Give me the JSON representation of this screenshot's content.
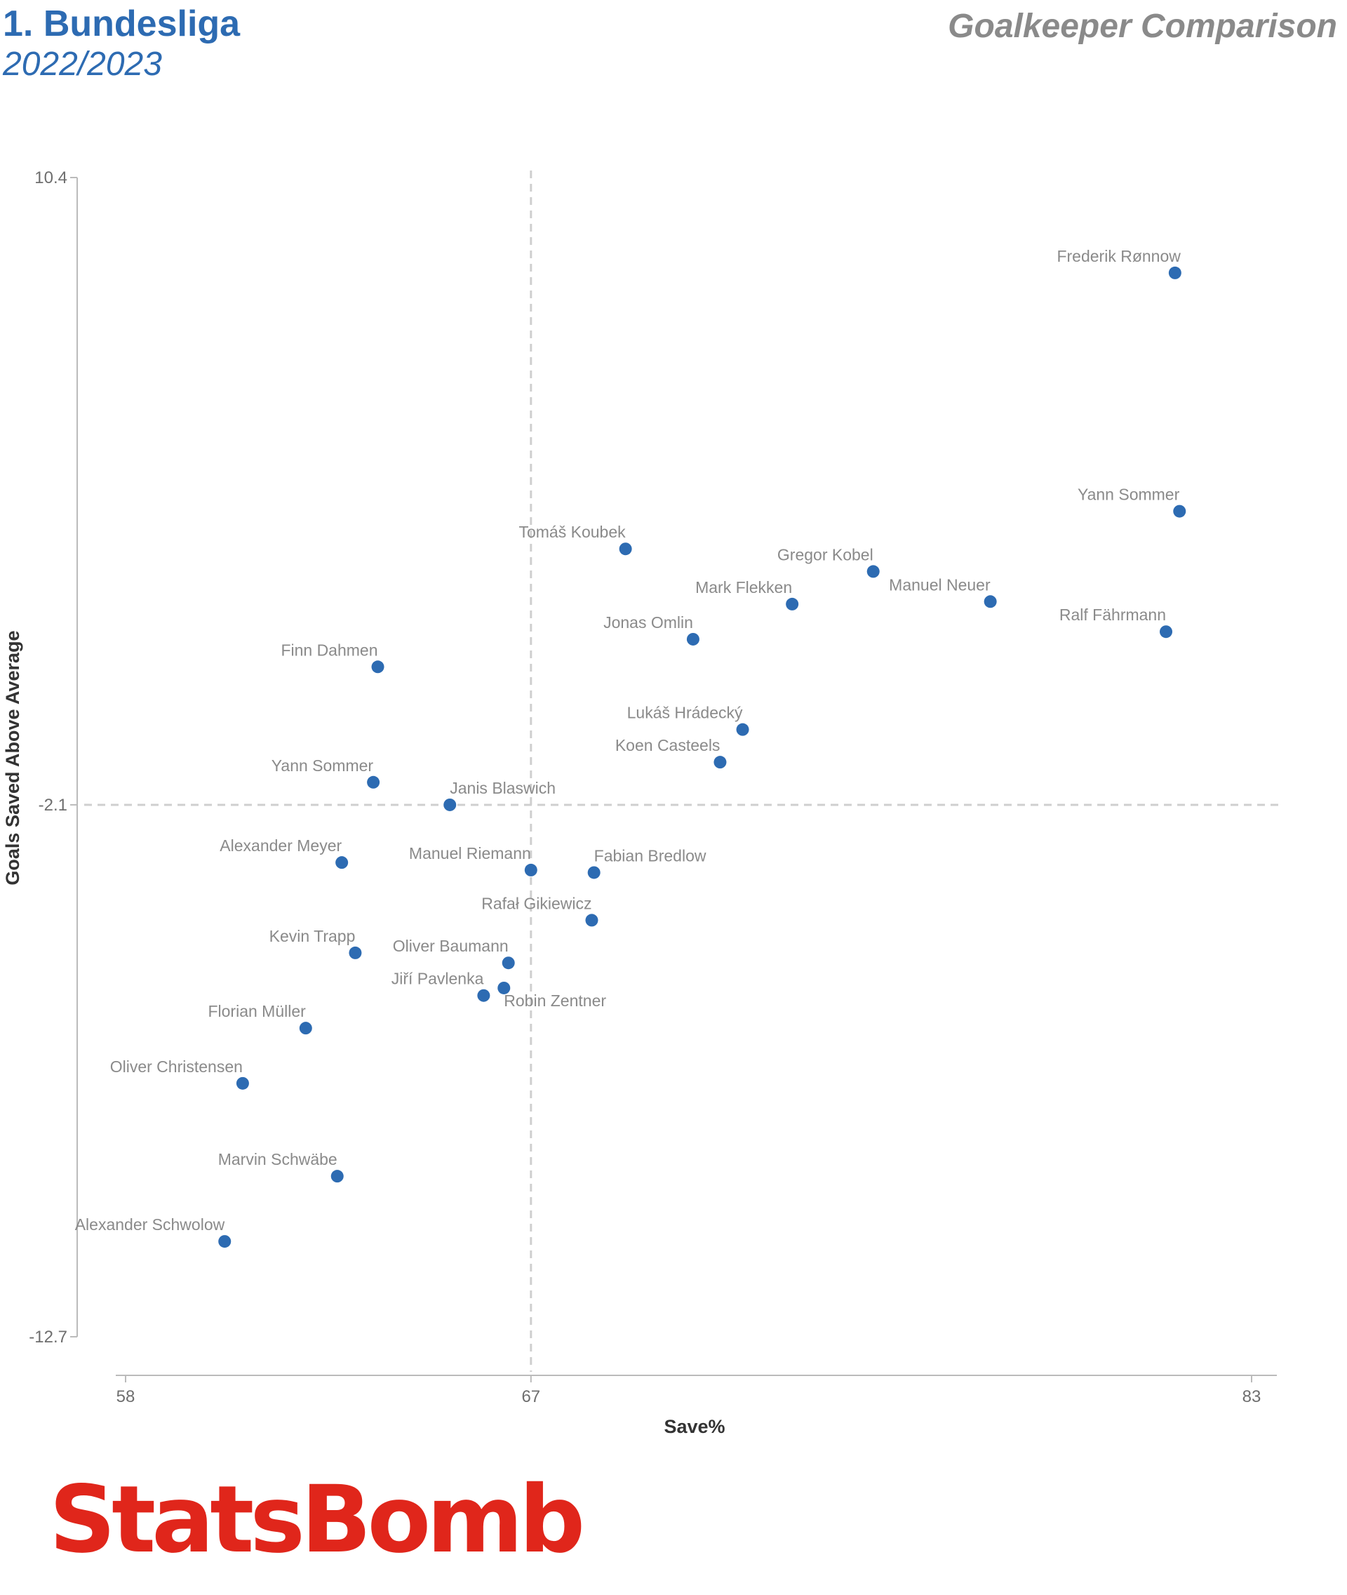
{
  "header": {
    "league": "1. Bundesliga",
    "season": "2022/2023",
    "comparison": "Goalkeeper Comparison"
  },
  "brand": {
    "logo_text": "StatsBomb",
    "logo_color": "#e0261b"
  },
  "chart_data": {
    "type": "scatter",
    "title": "Goalkeeper Comparison",
    "xlabel": "Save%",
    "ylabel": "Goals Saved Above Average",
    "xlim": [
      57.5,
      83.2
    ],
    "ylim": [
      -12.7,
      10.4
    ],
    "x_ticks": [
      {
        "value": 58,
        "label": "58"
      },
      {
        "value": 67,
        "label": "67"
      },
      {
        "value": 83,
        "label": "83"
      }
    ],
    "y_ticks": [
      {
        "value": 10.4,
        "label": "10.4"
      },
      {
        "value": -2.1,
        "label": "-2.1"
      },
      {
        "value": -12.7,
        "label": "-12.7"
      }
    ],
    "reference_lines": {
      "x": 67,
      "y": -2.1
    },
    "grid": false,
    "legend": "none",
    "point_color": "#2d6bb2",
    "label_color": "#8a8a8a",
    "points": [
      {
        "label": "Frederik Rønnow",
        "x": 81.3,
        "y": 8.5,
        "anchor": "end",
        "dx": 8,
        "dy": -16
      },
      {
        "label": "Yann Sommer",
        "x": 81.4,
        "y": 3.75,
        "anchor": "end",
        "dx": 0,
        "dy": -16
      },
      {
        "label": "Tomáš Koubek",
        "x": 69.1,
        "y": 3.0,
        "anchor": "end",
        "dx": 0,
        "dy": -16
      },
      {
        "label": "Gregor Kobel",
        "x": 74.6,
        "y": 2.55,
        "anchor": "end",
        "dx": 0,
        "dy": -16
      },
      {
        "label": "Mark Flekken",
        "x": 72.8,
        "y": 1.9,
        "anchor": "end",
        "dx": 0,
        "dy": -16
      },
      {
        "label": "Manuel Neuer",
        "x": 77.2,
        "y": 1.95,
        "anchor": "end",
        "dx": 0,
        "dy": -16
      },
      {
        "label": "Ralf Fährmann",
        "x": 81.1,
        "y": 1.35,
        "anchor": "end",
        "dx": 0,
        "dy": -16
      },
      {
        "label": "Jonas Omlin",
        "x": 70.6,
        "y": 1.2,
        "anchor": "end",
        "dx": 0,
        "dy": -16
      },
      {
        "label": "Finn Dahmen",
        "x": 63.6,
        "y": 0.65,
        "anchor": "end",
        "dx": 0,
        "dy": -16
      },
      {
        "label": "Lukáš Hrádecký",
        "x": 71.7,
        "y": -0.6,
        "anchor": "end",
        "dx": 0,
        "dy": -16
      },
      {
        "label": "Koen Casteels",
        "x": 71.2,
        "y": -1.25,
        "anchor": "end",
        "dx": 0,
        "dy": -16
      },
      {
        "label": "Yann Sommer",
        "x": 63.5,
        "y": -1.65,
        "anchor": "end",
        "dx": 0,
        "dy": -16
      },
      {
        "label": "Janis Blaswich",
        "x": 65.2,
        "y": -2.1,
        "anchor": "start",
        "dx": 0,
        "dy": -16
      },
      {
        "label": "Alexander Meyer",
        "x": 62.8,
        "y": -3.25,
        "anchor": "end",
        "dx": 0,
        "dy": -16
      },
      {
        "label": "Manuel Riemann",
        "x": 67.0,
        "y": -3.4,
        "anchor": "end",
        "dx": 0,
        "dy": -16
      },
      {
        "label": "Fabian Bredlow",
        "x": 68.4,
        "y": -3.45,
        "anchor": "start",
        "dx": 0,
        "dy": -16
      },
      {
        "label": "Rafał Gikiewicz",
        "x": 68.35,
        "y": -4.4,
        "anchor": "end",
        "dx": 0,
        "dy": -16
      },
      {
        "label": "Kevin Trapp",
        "x": 63.1,
        "y": -5.05,
        "anchor": "end",
        "dx": 0,
        "dy": -16
      },
      {
        "label": "Oliver Baumann",
        "x": 66.5,
        "y": -5.25,
        "anchor": "end",
        "dx": 0,
        "dy": -16
      },
      {
        "label": "Jiří Pavlenka",
        "x": 65.95,
        "y": -5.9,
        "anchor": "end",
        "dx": 0,
        "dy": -16
      },
      {
        "label": "Robin Zentner",
        "x": 66.4,
        "y": -5.75,
        "anchor": "start",
        "dx": 0,
        "dy": 26
      },
      {
        "label": "Florian Müller",
        "x": 62.0,
        "y": -6.55,
        "anchor": "end",
        "dx": 0,
        "dy": -16
      },
      {
        "label": "Oliver Christensen",
        "x": 60.6,
        "y": -7.65,
        "anchor": "end",
        "dx": 0,
        "dy": -16
      },
      {
        "label": "Marvin Schwäbe",
        "x": 62.7,
        "y": -9.5,
        "anchor": "end",
        "dx": 0,
        "dy": -16
      },
      {
        "label": "Alexander Schwolow",
        "x": 60.2,
        "y": -10.8,
        "anchor": "end",
        "dx": 0,
        "dy": -16
      }
    ]
  }
}
